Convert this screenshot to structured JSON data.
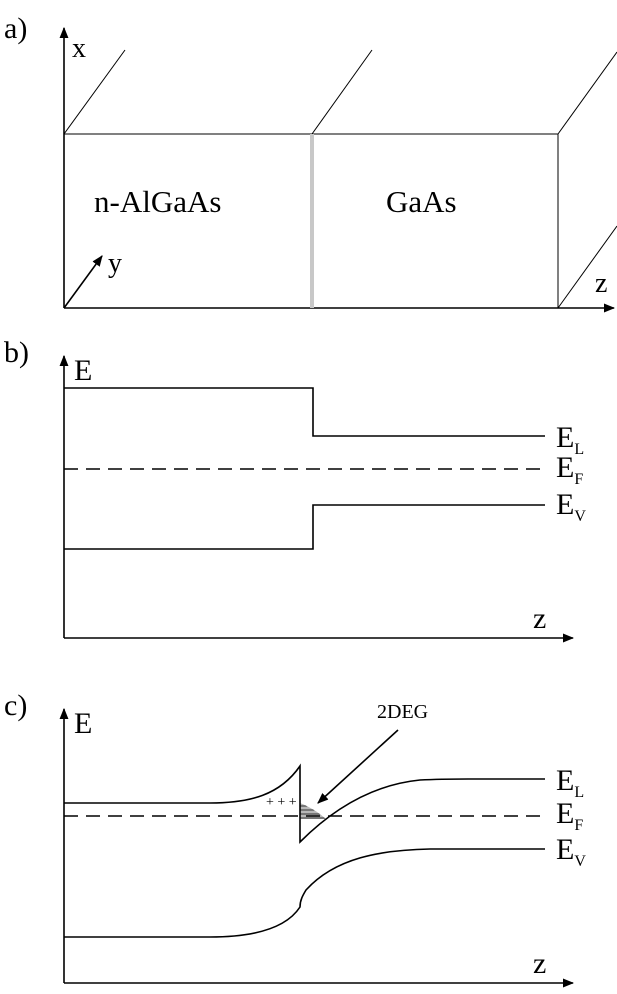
{
  "panel_a": {
    "label": "a)",
    "axis_x": "x",
    "axis_y": "y",
    "axis_z": "z",
    "left_layer": "n-AlGaAs",
    "right_layer": "GaAs",
    "interface_color": "#c8c8c8"
  },
  "panel_b": {
    "label": "b)",
    "axis_e": "E",
    "axis_z": "z",
    "level_labels": [
      {
        "base": "E",
        "sub": "L"
      },
      {
        "base": "E",
        "sub": "F"
      },
      {
        "base": "E",
        "sub": "V"
      }
    ]
  },
  "panel_c": {
    "label": "c)",
    "axis_e": "E",
    "axis_z": "z",
    "annotation": "2DEG",
    "charges": "+ + +",
    "level_labels": [
      {
        "base": "E",
        "sub": "L"
      },
      {
        "base": "E",
        "sub": "F"
      },
      {
        "base": "E",
        "sub": "V"
      }
    ]
  },
  "colors": {
    "line": "#000000",
    "interface": "#c8c8c8",
    "well_fill": "#9a9a9a"
  }
}
